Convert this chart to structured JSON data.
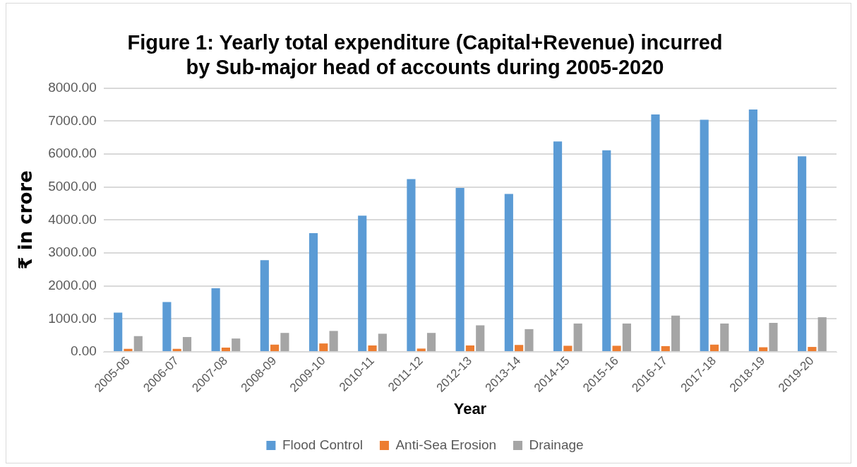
{
  "chart_data": {
    "type": "bar",
    "title": [
      "Figure 1: Yearly total expenditure (Capital+Revenue) incurred",
      "by Sub-major head of accounts during 2005-2020"
    ],
    "xlabel": "Year",
    "ylabel": "₹ in crore",
    "categories": [
      "2005-06",
      "2006-07",
      "2007-08",
      "2008-09",
      "2009-10",
      "2010-11",
      "2011-12",
      "2012-13",
      "2013-14",
      "2014-15",
      "2015-16",
      "2016-17",
      "2017-18",
      "2018-19",
      "2019-20"
    ],
    "series": [
      {
        "name": "Flood Control",
        "color": "#5b9bd5",
        "values": [
          1190,
          1510,
          1930,
          2780,
          3600,
          4130,
          5240,
          4970,
          4790,
          6380,
          6110,
          7200,
          7040,
          7350,
          5930
        ]
      },
      {
        "name": "Anti-Sea Erosion",
        "color": "#ed7d31",
        "values": [
          90,
          90,
          130,
          220,
          255,
          195,
          100,
          195,
          210,
          185,
          185,
          175,
          220,
          140,
          150
        ]
      },
      {
        "name": "Drainage",
        "color": "#a5a5a5",
        "values": [
          480,
          450,
          405,
          575,
          635,
          550,
          575,
          805,
          690,
          860,
          860,
          1100,
          860,
          880,
          1050
        ]
      }
    ],
    "ylim": [
      0,
      8000
    ],
    "yticks": [
      {
        "value": 0,
        "label": "0.00"
      },
      {
        "value": 1000,
        "label": "1000.00"
      },
      {
        "value": 2000,
        "label": "2000.00"
      },
      {
        "value": 3000,
        "label": "3000.00"
      },
      {
        "value": 4000,
        "label": "4000.00"
      },
      {
        "value": 5000,
        "label": "5000.00"
      },
      {
        "value": 6000,
        "label": "6000.00"
      },
      {
        "value": 7000,
        "label": "7000.00"
      },
      {
        "value": 8000,
        "label": "8000.00"
      }
    ],
    "grid": "y",
    "legend": "bottom"
  }
}
